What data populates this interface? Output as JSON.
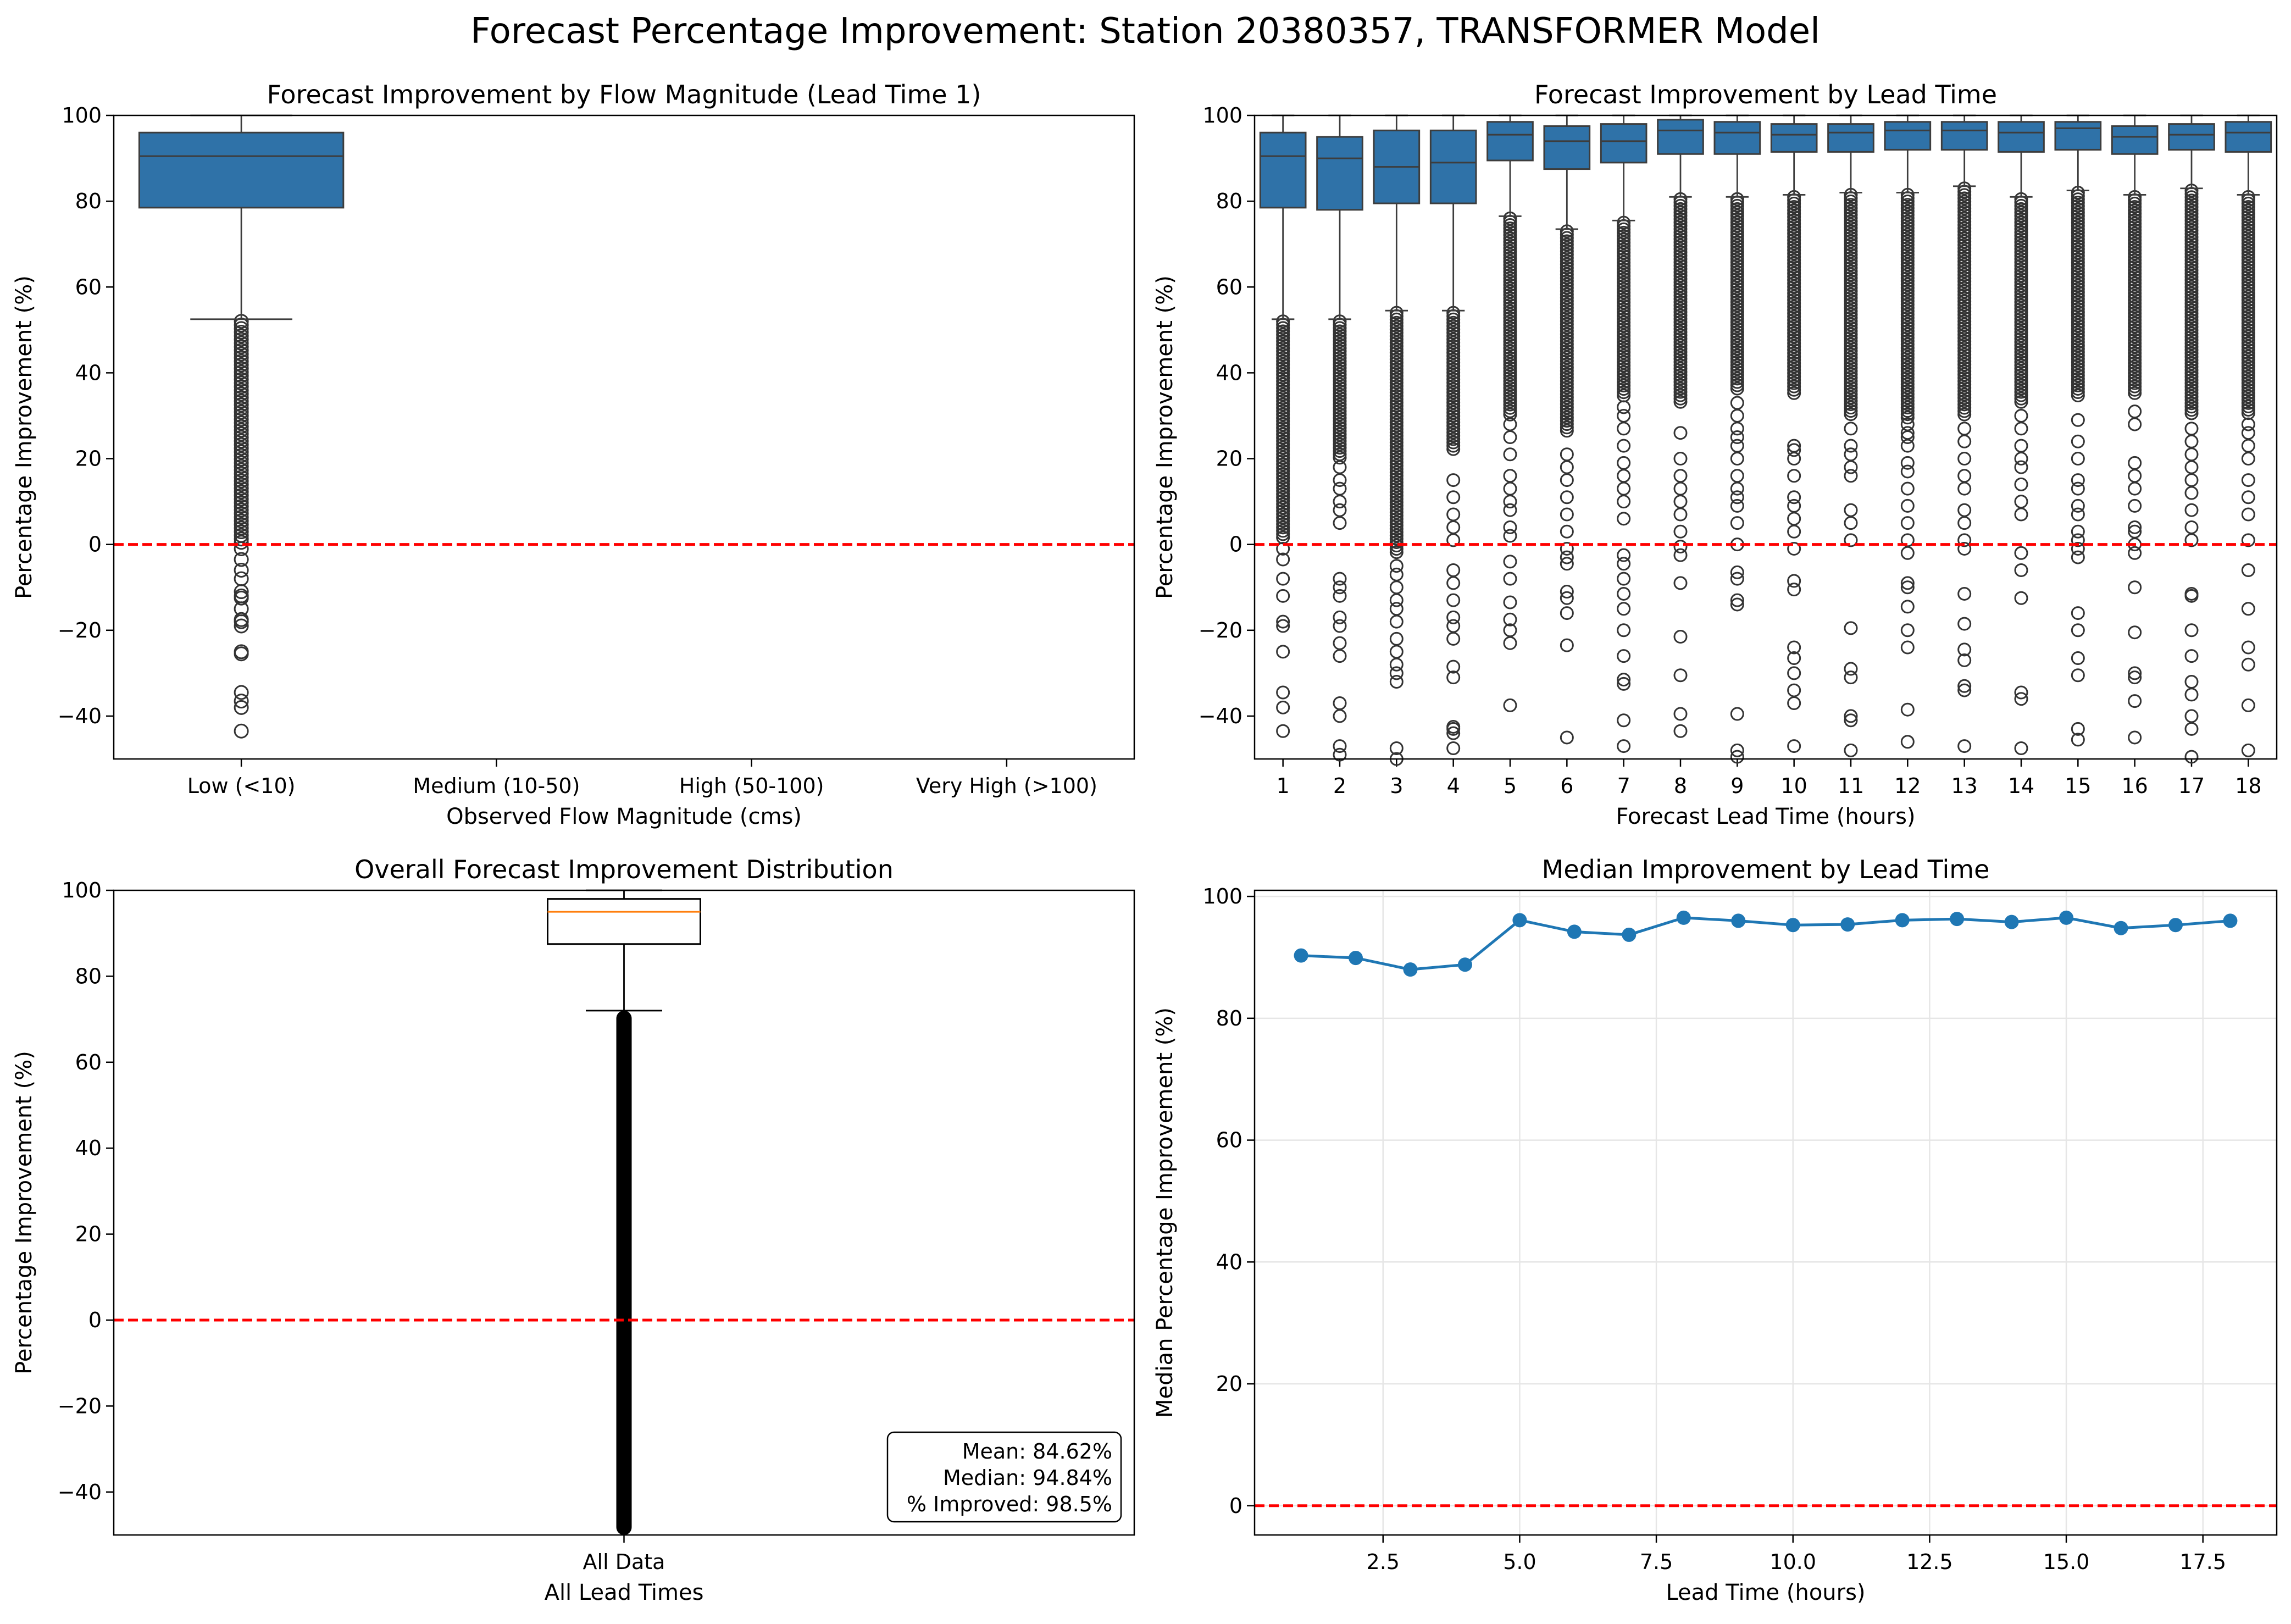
{
  "figure": {
    "title": "Forecast Percentage Improvement: Station 20380357, TRANSFORMER Model"
  },
  "colors": {
    "box_fill": "#2f72a8",
    "box_edge": "#3d3d3d",
    "matplotlib_median": "#ff7f0e",
    "line": "#1f77b4",
    "zero_line": "#ff0000",
    "grid": "#e6e6e6"
  },
  "chart_data": [
    {
      "type": "box",
      "title": "Forecast Improvement by Flow Magnitude (Lead Time 1)",
      "xlabel": "Observed Flow Magnitude (cms)",
      "ylabel": "Percentage Improvement (%)",
      "ylim": [
        -50,
        100
      ],
      "yticks": [
        "100",
        "80",
        "60",
        "40",
        "20",
        "0",
        "−20",
        "−40"
      ],
      "categories": [
        "Low (<10)",
        "Medium (10-50)",
        "High (50-100)",
        "Very High (>100)"
      ],
      "boxes": [
        {
          "category": "Low (<10)",
          "q1": 78.5,
          "median": 90.5,
          "q3": 96.0,
          "whisker_low": 52.5,
          "whisker_high": 100,
          "outliers": [
            -43.5,
            -38,
            -36.5,
            -34.5,
            -25.5,
            -25,
            -19,
            -18,
            -17.5,
            -15,
            -12.5,
            -12,
            -11,
            -8,
            -6,
            -3.5,
            -1,
            0.5
          ]
        }
      ],
      "outlier_band": [
        {
          "category": "Low (<10)",
          "from": 1,
          "to": 52
        }
      ],
      "reference_line": 0,
      "grid": false
    },
    {
      "type": "box",
      "title": "Forecast Improvement by Lead Time",
      "xlabel": "Forecast Lead Time (hours)",
      "ylabel": "Percentage Improvement (%)",
      "ylim": [
        -50,
        100
      ],
      "yticks": [
        "100",
        "80",
        "60",
        "40",
        "20",
        "0",
        "−20",
        "−40"
      ],
      "categories": [
        "1",
        "2",
        "3",
        "4",
        "5",
        "6",
        "7",
        "8",
        "9",
        "10",
        "11",
        "12",
        "13",
        "14",
        "15",
        "16",
        "17",
        "18"
      ],
      "boxes": [
        {
          "category": "1",
          "q1": 78.5,
          "median": 90.5,
          "q3": 96.0,
          "whisker_low": 52.5,
          "whisker_high": 100,
          "band_from": 1,
          "outliers": [
            -43.5,
            -38,
            -34.5,
            -25,
            -19,
            -18,
            -12,
            -8,
            -3.5,
            -1
          ]
        },
        {
          "category": "2",
          "q1": 78.0,
          "median": 90.0,
          "q3": 95.0,
          "whisker_low": 52.5,
          "whisker_high": 100,
          "band_from": 20,
          "outliers": [
            -49,
            -47,
            -40,
            -37,
            -26,
            -23,
            -19,
            -17,
            -12,
            -10,
            -8,
            5,
            8,
            10,
            13,
            15,
            18
          ]
        },
        {
          "category": "3",
          "q1": 79.5,
          "median": 88.0,
          "q3": 96.5,
          "whisker_low": 54.5,
          "whisker_high": 100,
          "band_from": -2,
          "outliers": [
            -50,
            -47.5,
            -32,
            -30,
            -28,
            -25,
            -22,
            -18,
            -15,
            -13,
            -10,
            -7,
            -5
          ]
        },
        {
          "category": "4",
          "q1": 79.5,
          "median": 89.0,
          "q3": 96.5,
          "whisker_low": 54.5,
          "whisker_high": 100,
          "band_from": 22,
          "outliers": [
            -47.5,
            -44,
            -43,
            -42.5,
            -31,
            -28.5,
            -22,
            -19,
            -17,
            -13,
            -9,
            -6,
            1,
            4,
            7,
            11,
            15
          ]
        },
        {
          "category": "5",
          "q1": 89.5,
          "median": 95.5,
          "q3": 98.5,
          "whisker_low": 76.5,
          "whisker_high": 100,
          "band_from": 30,
          "outliers": [
            -37.5,
            -23,
            -20,
            -17.5,
            -13.5,
            -8,
            -4,
            2,
            4,
            8,
            10,
            13,
            16,
            21,
            25,
            28
          ]
        },
        {
          "category": "6",
          "q1": 87.5,
          "median": 94.0,
          "q3": 97.5,
          "whisker_low": 73.5,
          "whisker_high": 100,
          "band_from": 26,
          "outliers": [
            -45,
            -23.5,
            -16,
            -12.5,
            -11,
            -4.5,
            -3,
            -1,
            3,
            7,
            11,
            15,
            18,
            21
          ]
        },
        {
          "category": "7",
          "q1": 89.0,
          "median": 94.0,
          "q3": 98.0,
          "whisker_low": 75.5,
          "whisker_high": 100,
          "band_from": 34,
          "outliers": [
            -47,
            -41,
            -32.5,
            -31.5,
            -26,
            -20,
            -15,
            -11.5,
            -8,
            -4.5,
            -2.5,
            6,
            10,
            13,
            16,
            19,
            23,
            27,
            30,
            32
          ]
        },
        {
          "category": "8",
          "q1": 91.0,
          "median": 96.5,
          "q3": 99.0,
          "whisker_low": 81.0,
          "whisker_high": 100,
          "band_from": 33,
          "outliers": [
            -43.5,
            -39.5,
            -30.5,
            -21.5,
            -9,
            -2.5,
            -0.5,
            3,
            7,
            10,
            13,
            16,
            20,
            26
          ]
        },
        {
          "category": "9",
          "q1": 91.0,
          "median": 96.0,
          "q3": 98.5,
          "whisker_low": 81.0,
          "whisker_high": 100,
          "band_from": 36,
          "outliers": [
            -49.5,
            -48,
            -39.5,
            -14,
            -13,
            -8,
            -6.5,
            0,
            5,
            9,
            11,
            13,
            16,
            20,
            23,
            25,
            27,
            30,
            33
          ]
        },
        {
          "category": "10",
          "q1": 91.5,
          "median": 95.5,
          "q3": 98.0,
          "whisker_low": 81.5,
          "whisker_high": 100,
          "band_from": 35,
          "outliers": [
            -47,
            -37,
            -34,
            -30,
            -26.5,
            -24,
            -10.5,
            -8.5,
            -1,
            3,
            6,
            9,
            11,
            16,
            20,
            22,
            23
          ]
        },
        {
          "category": "11",
          "q1": 91.5,
          "median": 96.0,
          "q3": 98.0,
          "whisker_low": 82.0,
          "whisker_high": 100,
          "band_from": 30,
          "outliers": [
            -48,
            -41,
            -40,
            -31,
            -29,
            -19.5,
            1,
            5,
            8,
            16,
            18,
            21,
            23,
            27
          ]
        },
        {
          "category": "12",
          "q1": 92.0,
          "median": 96.5,
          "q3": 98.5,
          "whisker_low": 82.0,
          "whisker_high": 100,
          "band_from": 29,
          "outliers": [
            -46,
            -38.5,
            -24,
            -20,
            -14.5,
            -10,
            -9,
            -2,
            1,
            5,
            9,
            13,
            17,
            19,
            23,
            25,
            26,
            28
          ]
        },
        {
          "category": "13",
          "q1": 92.0,
          "median": 96.5,
          "q3": 98.5,
          "whisker_low": 83.5,
          "whisker_high": 100,
          "band_from": 30,
          "outliers": [
            -47,
            -34,
            -33,
            -27,
            -24.5,
            -18.5,
            -11.5,
            -1,
            1,
            5,
            8,
            13,
            16,
            20,
            24,
            27
          ]
        },
        {
          "category": "14",
          "q1": 91.5,
          "median": 96.0,
          "q3": 98.5,
          "whisker_low": 81.0,
          "whisker_high": 100,
          "band_from": 33,
          "outliers": [
            -47.5,
            -36,
            -34.5,
            -12.5,
            -6,
            -2,
            7,
            10,
            14,
            18,
            20,
            23,
            27,
            30
          ]
        },
        {
          "category": "15",
          "q1": 92.0,
          "median": 97.0,
          "q3": 98.5,
          "whisker_low": 82.5,
          "whisker_high": 100,
          "band_from": 34,
          "outliers": [
            -45.5,
            -43,
            -30.5,
            -26.5,
            -20,
            -16,
            -3,
            -1,
            1,
            3,
            7,
            9,
            13,
            15,
            20,
            24,
            29
          ]
        },
        {
          "category": "16",
          "q1": 91.0,
          "median": 95.0,
          "q3": 97.5,
          "whisker_low": 81.5,
          "whisker_high": 100,
          "band_from": 35,
          "outliers": [
            -45,
            -36.5,
            -31,
            -30,
            -20.5,
            -10,
            -2,
            0,
            3,
            4,
            9,
            13,
            16,
            19,
            28,
            31
          ]
        },
        {
          "category": "17",
          "q1": 92.0,
          "median": 95.5,
          "q3": 98.0,
          "whisker_low": 83.0,
          "whisker_high": 100,
          "band_from": 30,
          "outliers": [
            -49.5,
            -43,
            -40,
            -35,
            -32,
            -26,
            -20,
            -12,
            -11.5,
            1,
            4,
            8,
            12,
            15,
            18,
            21,
            24,
            27
          ]
        },
        {
          "category": "18",
          "q1": 91.5,
          "median": 96.0,
          "q3": 98.5,
          "whisker_low": 81.5,
          "whisker_high": 100,
          "band_from": 30,
          "outliers": [
            -48,
            -37.5,
            -28,
            -24,
            -15,
            -6,
            1,
            7,
            11,
            15,
            20,
            23,
            26,
            28
          ]
        }
      ],
      "reference_line": 0,
      "grid": false
    },
    {
      "type": "box",
      "title": "Overall Forecast Improvement Distribution",
      "xlabel": "All Lead Times",
      "ylabel": "Percentage Improvement (%)",
      "ylim": [
        -50,
        100
      ],
      "yticks": [
        "100",
        "80",
        "60",
        "40",
        "20",
        "0",
        "−20",
        "−40"
      ],
      "categories": [
        "All Data"
      ],
      "boxes": [
        {
          "category": "All Data",
          "q1": 87.5,
          "median": 95.0,
          "q3": 98.0,
          "whisker_low": 72.0,
          "whisker_high": 100
        }
      ],
      "outlier_band": [
        {
          "category": "All Data",
          "from": -50,
          "to": 72
        }
      ],
      "reference_line": 0,
      "grid": false,
      "stats_box": {
        "lines": [
          "Mean: 84.62%",
          "Median: 94.84%",
          "% Improved: 98.5%"
        ],
        "placement": "bottom-right"
      }
    },
    {
      "type": "line",
      "title": "Median Improvement by Lead Time",
      "xlabel": "Lead Time (hours)",
      "ylabel": "Median Percentage Improvement (%)",
      "xlim": [
        0.15,
        18.85
      ],
      "ylim": [
        -4.8,
        101
      ],
      "xticks": [
        "2.5",
        "5.0",
        "7.5",
        "10.0",
        "12.5",
        "15.0",
        "17.5"
      ],
      "yticks": [
        "0",
        "20",
        "40",
        "60",
        "80",
        "100"
      ],
      "x": [
        1,
        2,
        3,
        4,
        5,
        6,
        7,
        8,
        9,
        10,
        11,
        12,
        13,
        14,
        15,
        16,
        17,
        18
      ],
      "y": [
        90.3,
        89.9,
        88.0,
        88.8,
        96.1,
        94.2,
        93.7,
        96.5,
        96.0,
        95.3,
        95.4,
        96.1,
        96.3,
        95.8,
        96.5,
        94.8,
        95.3,
        96.0
      ],
      "reference_line": 0,
      "grid": true
    }
  ]
}
